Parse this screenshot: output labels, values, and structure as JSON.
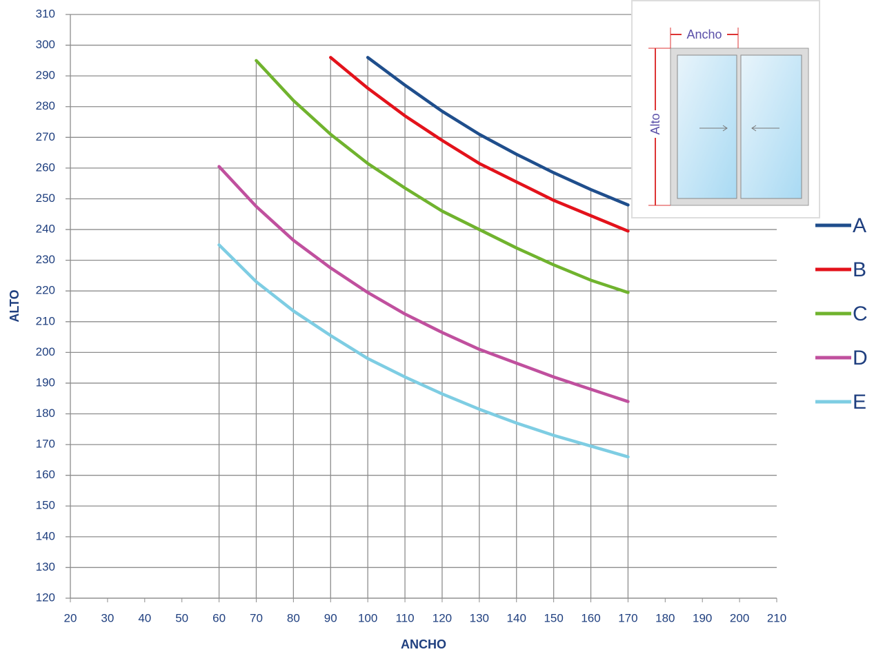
{
  "chart_data": {
    "type": "line",
    "x_label": "ANCHO",
    "y_label": "ALTO",
    "annotations": [
      "Ancho",
      "Alto"
    ],
    "x": [
      60,
      70,
      80,
      90,
      100,
      110,
      120,
      130,
      140,
      150,
      160,
      170
    ],
    "series": [
      {
        "name": "A",
        "color": "#1f4e8c",
        "values": [
          null,
          null,
          null,
          null,
          296,
          287,
          278.5,
          271,
          264.5,
          258.5,
          253,
          248
        ]
      },
      {
        "name": "B",
        "color": "#e3121b",
        "values": [
          null,
          null,
          null,
          296,
          286,
          277,
          269,
          261.5,
          255.5,
          249.5,
          244.5,
          239.5
        ]
      },
      {
        "name": "C",
        "color": "#70b32e",
        "values": [
          null,
          295,
          282,
          271,
          261.5,
          253.5,
          246,
          240,
          234,
          228.5,
          223.5,
          219.5
        ]
      },
      {
        "name": "D",
        "color": "#c0509e",
        "values": [
          260.5,
          247.5,
          236.5,
          227.5,
          219.5,
          212.5,
          206.5,
          201,
          196.5,
          192,
          188,
          184
        ]
      },
      {
        "name": "E",
        "color": "#7ecde3",
        "values": [
          235,
          223,
          213.5,
          205.5,
          198,
          192,
          186.5,
          181.5,
          177,
          173,
          169.5,
          166
        ]
      }
    ],
    "xlim": [
      20,
      210
    ],
    "xticks": [
      20,
      30,
      40,
      50,
      60,
      70,
      80,
      90,
      100,
      110,
      120,
      130,
      140,
      150,
      160,
      170,
      180,
      190,
      200,
      210
    ],
    "ylim": [
      120,
      310
    ],
    "yticks": [
      120,
      130,
      140,
      150,
      160,
      170,
      180,
      190,
      200,
      210,
      220,
      230,
      240,
      250,
      260,
      270,
      280,
      290,
      300,
      310
    ],
    "grid": true,
    "legend": "right"
  }
}
